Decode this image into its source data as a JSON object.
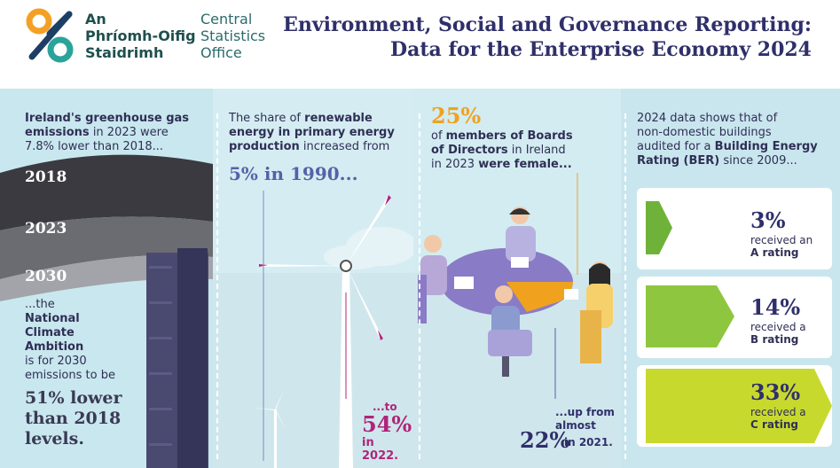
{
  "header": {
    "logo_ga_lines": [
      "An",
      "Phríomh-Oifig",
      "Staidrimh"
    ],
    "logo_en_lines": [
      "Central",
      "Statistics",
      "Office"
    ],
    "title_lines": [
      "Environment, Social and Governance Reporting:",
      "Data for the Enterprise Economy 2024"
    ]
  },
  "ghg": {
    "intro_1": "Ireland's greenhouse gas",
    "intro_2": "emissions",
    "intro_3": " in 2023 were",
    "intro_4": "7.8% lower than 2018...",
    "years": [
      "2018",
      "2023",
      "2030"
    ],
    "ambition_1": "...the",
    "ambition_2": "National",
    "ambition_3": "Climate",
    "ambition_4": "Ambition",
    "ambition_5": "is for 2030",
    "ambition_6": "emissions to be",
    "target_1": "51% lower",
    "target_2": "than 2018",
    "target_3": "levels."
  },
  "renewable": {
    "intro_1a": "The share of ",
    "intro_1b": "renewable",
    "intro_2": "energy in primary energy",
    "intro_3a": "production",
    "intro_3b": " increased from",
    "start_value": "5% in 1990...",
    "end_prefix": "...to",
    "end_value": "54%",
    "end_suffix": "in 2022."
  },
  "boards": {
    "share": "25%",
    "text_1a": "of ",
    "text_1b": "members of Boards",
    "text_2": "of Directors",
    "text_2b": " in Ireland",
    "text_3a": "in 2023 ",
    "text_3b": "were female...",
    "up_from_1": "...up from",
    "up_from_2": "almost",
    "prev_value": "22%",
    "prev_suffix": "in 2021."
  },
  "ber": {
    "intro_1": "2024 data shows that of",
    "intro_2": "non-domestic buildings",
    "intro_3a": "audited for a ",
    "intro_3b": "Building Energy",
    "intro_4a": "Rating (BER)",
    "intro_4b": " since 2009...",
    "ratings": [
      {
        "value": "3%",
        "line1": "received an",
        "line2": "A rating",
        "color": "#6fb23a"
      },
      {
        "value": "14%",
        "line1": "received a",
        "line2": "B rating",
        "color": "#8ec63f"
      },
      {
        "value": "33%",
        "line1": "received a",
        "line2": "C rating",
        "color": "#c8d92e"
      }
    ]
  },
  "colors": {
    "navy": "#2f2f6a",
    "magenta": "#b0247a",
    "orange": "#f0a21f",
    "purple_blue": "#5661a8",
    "teal_logo": "#2aa39a",
    "orange_logo": "#f4a024"
  }
}
